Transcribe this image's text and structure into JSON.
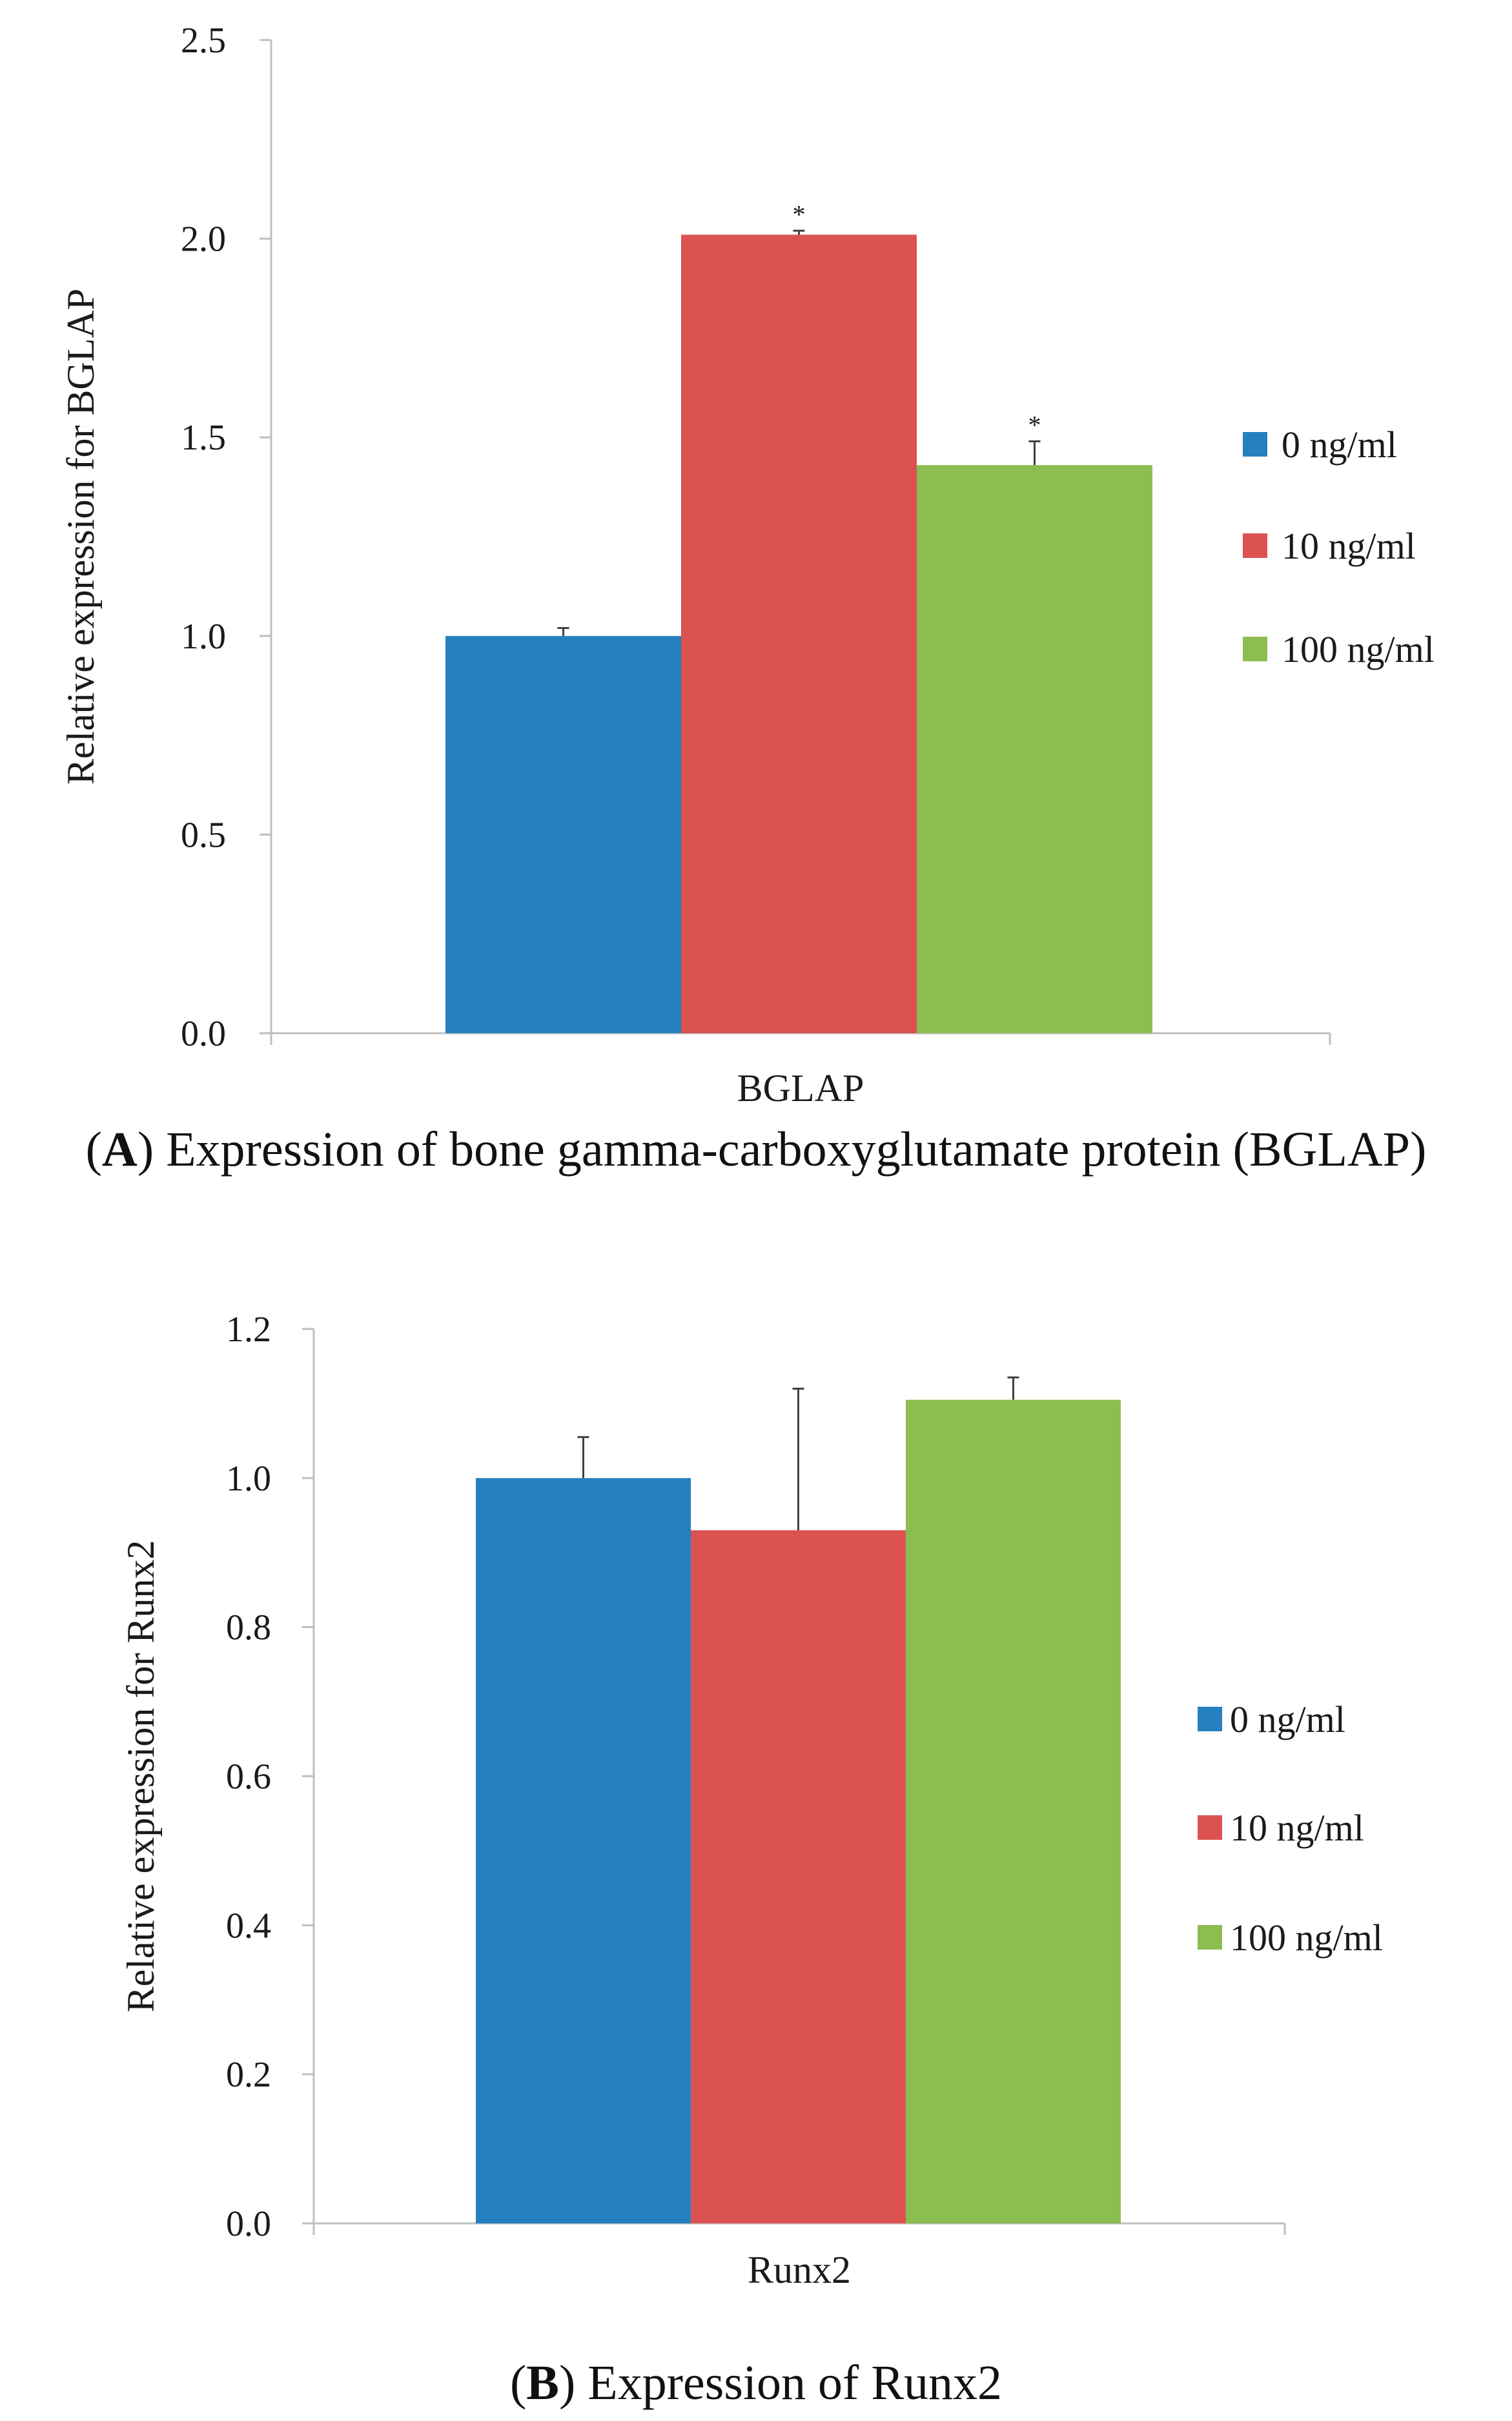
{
  "chart_data": [
    {
      "type": "bar",
      "panel": "A",
      "categories": [
        "BGLAP"
      ],
      "series": [
        {
          "name": "0 ng/ml",
          "values": [
            1.0
          ],
          "errors": [
            0.02
          ],
          "significance": [
            ""
          ]
        },
        {
          "name": "10 ng/ml",
          "values": [
            2.01
          ],
          "errors": [
            0.01
          ],
          "significance": [
            "*"
          ]
        },
        {
          "name": "100 ng/ml",
          "values": [
            1.43
          ],
          "errors": [
            0.06
          ],
          "significance": [
            "*"
          ]
        }
      ],
      "xlabel": "BGLAP",
      "ylabel": "Relative expression for BGLAP",
      "ylim": [
        0,
        2.5
      ],
      "yticks": [
        "0.0",
        "0.5",
        "1.0",
        "1.5",
        "2.0",
        "2.5"
      ],
      "legend": "right",
      "caption_letter": "A",
      "caption": ") Expression of bone gamma-carboxyglutamate protein (BGLAP)",
      "grid": false
    },
    {
      "type": "bar",
      "panel": "B",
      "categories": [
        "Runx2"
      ],
      "series": [
        {
          "name": "0 ng/ml",
          "values": [
            1.0
          ],
          "errors": [
            0.055
          ],
          "significance": [
            ""
          ]
        },
        {
          "name": "10 ng/ml",
          "values": [
            0.93
          ],
          "errors": [
            0.19
          ],
          "significance": [
            ""
          ]
        },
        {
          "name": "100 ng/ml",
          "values": [
            1.105
          ],
          "errors": [
            0.03
          ],
          "significance": [
            ""
          ]
        }
      ],
      "xlabel": "Runx2",
      "ylabel": "Relative expression for Runx2",
      "ylim": [
        0,
        1.2
      ],
      "yticks": [
        "0.0",
        "0.2",
        "0.4",
        "0.6",
        "0.8",
        "1.0",
        "1.2"
      ],
      "legend": "right",
      "caption_letter": "B",
      "caption": ") Expression of Runx2",
      "grid": false
    }
  ],
  "colors": {
    "series": [
      "#2680BF",
      "#DB5250",
      "#8CBD50"
    ],
    "axis": "#BFBFBF",
    "text": "#1A1A1A"
  }
}
